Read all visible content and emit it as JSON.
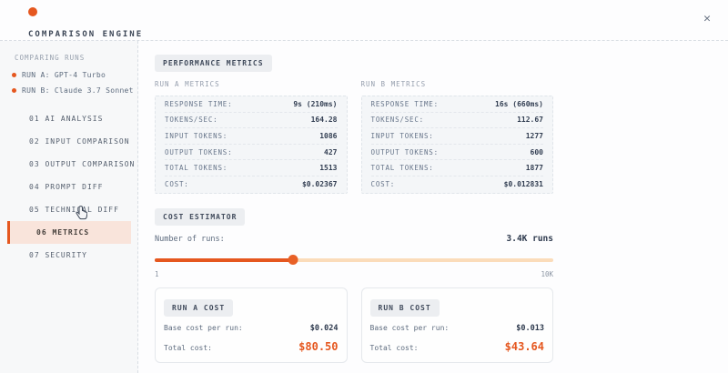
{
  "header": {
    "title": "COMPARISON ENGINE",
    "close_label": "✕"
  },
  "sidebar": {
    "section_label": "COMPARING RUNS",
    "runs": [
      {
        "label": "RUN A: GPT-4 Turbo"
      },
      {
        "label": "RUN B: Claude 3.7 Sonnet"
      }
    ],
    "nav": [
      {
        "label": "01 AI ANALYSIS",
        "active": false
      },
      {
        "label": "02 INPUT COMPARISON",
        "active": false
      },
      {
        "label": "03 OUTPUT COMPARISON",
        "active": false
      },
      {
        "label": "04 PROMPT DIFF",
        "active": false
      },
      {
        "label": "05 TECHNICAL DIFF",
        "active": false
      },
      {
        "label": "06 METRICS",
        "active": true
      },
      {
        "label": "07 SECURITY",
        "active": false
      }
    ]
  },
  "performance": {
    "badge": "PERFORMANCE METRICS",
    "columns": [
      {
        "title": "RUN A METRICS",
        "rows": [
          {
            "label": "RESPONSE TIME:",
            "value": "9s (210ms)"
          },
          {
            "label": "TOKENS/SEC:",
            "value": "164.28"
          },
          {
            "label": "INPUT TOKENS:",
            "value": "1086"
          },
          {
            "label": "OUTPUT TOKENS:",
            "value": "427"
          },
          {
            "label": "TOTAL TOKENS:",
            "value": "1513"
          },
          {
            "label": "COST:",
            "value": "$0.02367"
          }
        ]
      },
      {
        "title": "RUN B METRICS",
        "rows": [
          {
            "label": "RESPONSE TIME:",
            "value": "16s (660ms)"
          },
          {
            "label": "TOKENS/SEC:",
            "value": "112.67"
          },
          {
            "label": "INPUT TOKENS:",
            "value": "1277"
          },
          {
            "label": "OUTPUT TOKENS:",
            "value": "600"
          },
          {
            "label": "TOTAL TOKENS:",
            "value": "1877"
          },
          {
            "label": "COST:",
            "value": "$0.012831"
          }
        ]
      }
    ]
  },
  "cost_estimator": {
    "badge": "COST ESTIMATOR",
    "runs_label": "Number of runs:",
    "runs_value": "3.4K runs",
    "slider": {
      "min_label": "1",
      "max_label": "10K",
      "percent": 34.6
    },
    "cards": [
      {
        "badge": "RUN A COST",
        "base_label": "Base cost per run:",
        "base_value": "$0.024",
        "total_label": "Total cost:",
        "total_value": "$80.50"
      },
      {
        "badge": "RUN B COST",
        "base_label": "Base cost per run:",
        "base_value": "$0.013",
        "total_label": "Total cost:",
        "total_value": "$43.64"
      }
    ]
  },
  "colors": {
    "accent": "#e5571f",
    "accent_light_bg": "#f9e4db",
    "track_unfilled": "#fbdcba",
    "badge_bg": "#eceef1",
    "value_text": "#2e3a4e",
    "label_text": "#5d6b7e"
  }
}
